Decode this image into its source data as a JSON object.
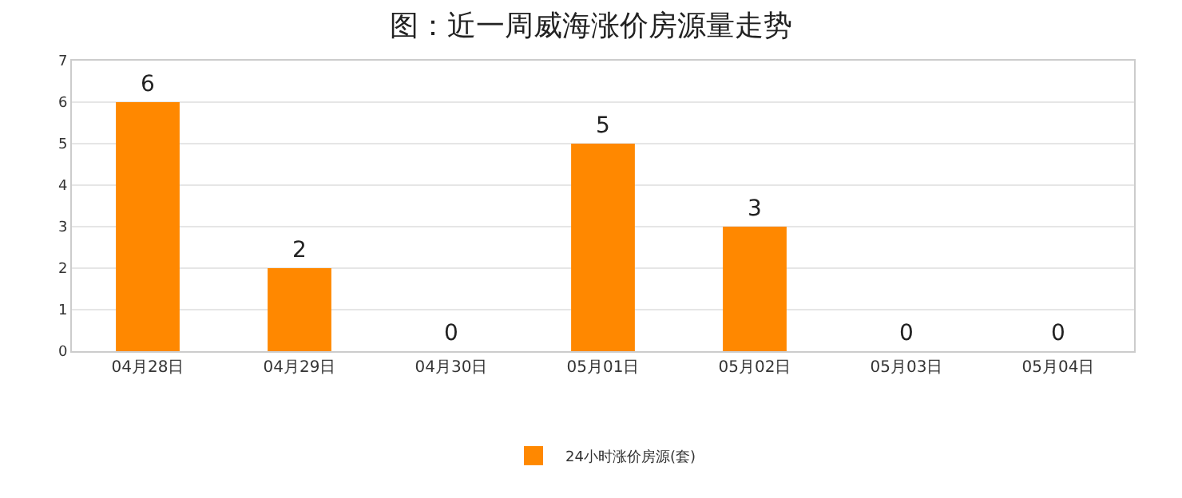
{
  "chart_data": {
    "type": "bar",
    "title": "图：近一周威海涨价房源量走势",
    "categories": [
      "04月28日",
      "04月29日",
      "04月30日",
      "05月01日",
      "05月02日",
      "05月03日",
      "05月04日"
    ],
    "series": [
      {
        "name": "24小时涨价房源(套)",
        "color": "#ff8800",
        "values": [
          6,
          2,
          0,
          5,
          3,
          0,
          0
        ]
      }
    ],
    "ylim": [
      0,
      7
    ],
    "yticks": [
      0,
      1,
      2,
      3,
      4,
      5,
      6,
      7
    ],
    "grid": "y",
    "legend": "bottom",
    "data_labels": true
  }
}
